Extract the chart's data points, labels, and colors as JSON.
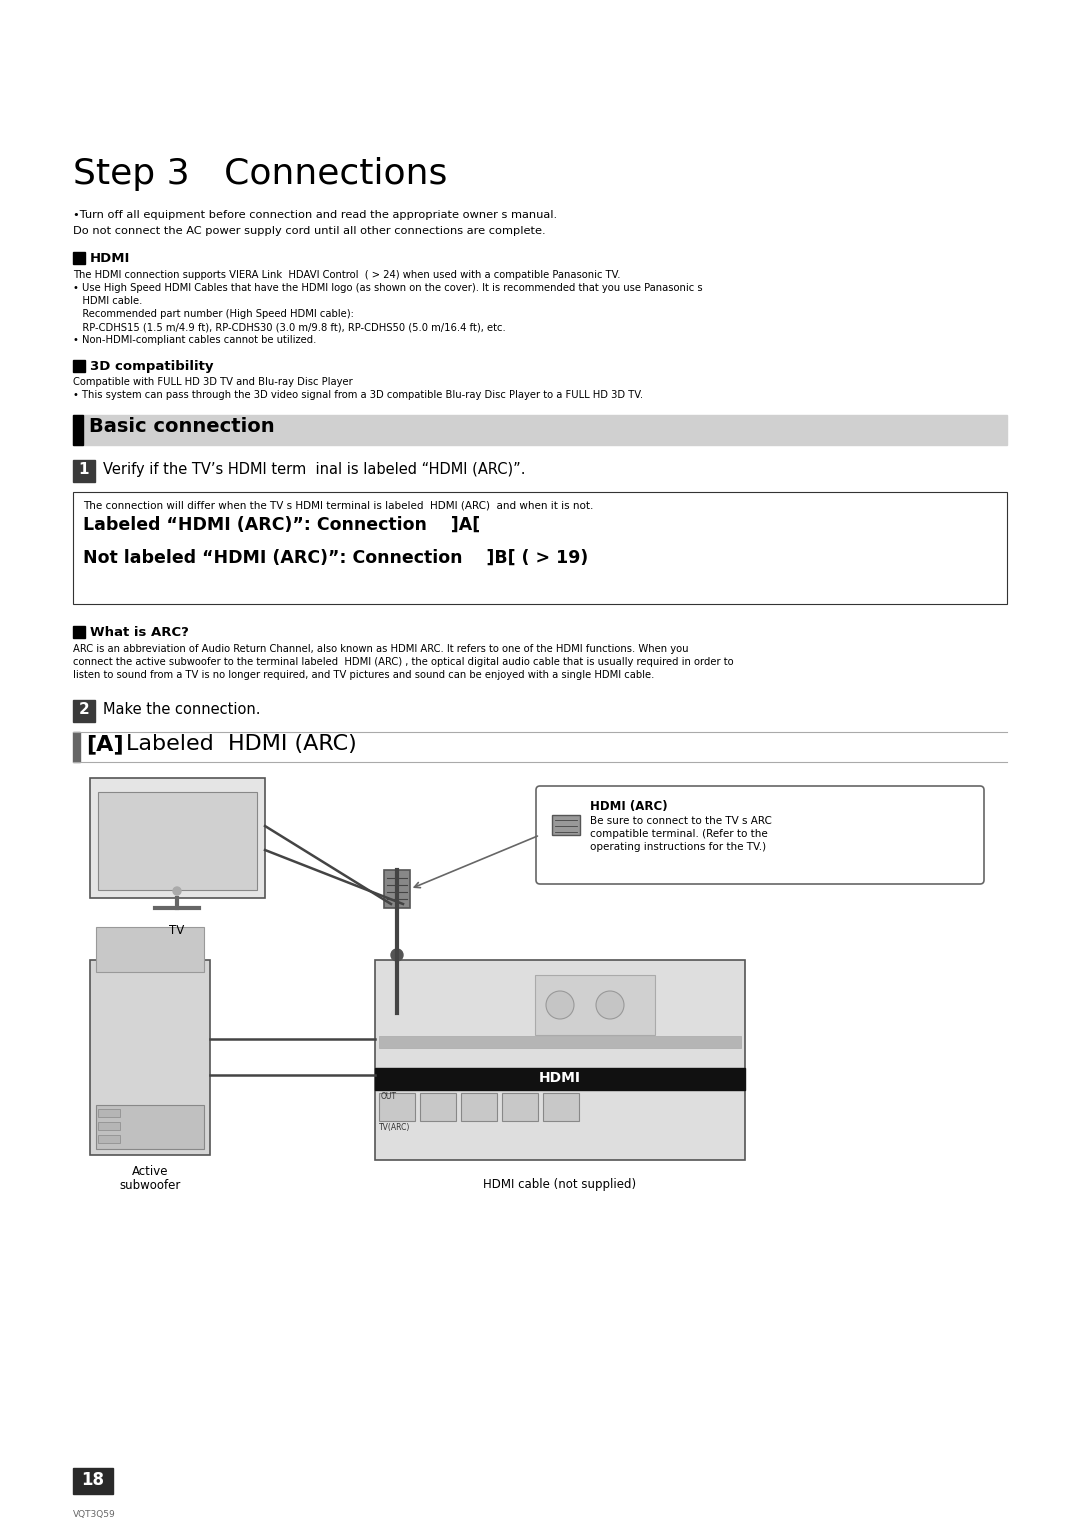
{
  "title": "Step 3   Connections",
  "page_bg": "#ffffff",
  "title_fontsize": 26,
  "bullet1a": "•Turn off all equipment before connection and read the appropriate owner s manual.",
  "bullet1b": "Do not connect the AC power supply cord until all other connections are complete.",
  "hdmi_header": "HDMI",
  "hdmi_text1": "The HDMI connection supports VIERA Link  HDAVI Control  ( > 24) when used with a compatible Panasonic TV.",
  "hdmi_text2a": "• Use High Speed HDMI Cables that have the HDMI logo (as shown on the cover). It is recommended that you use Panasonic s",
  "hdmi_text2b": "   HDMI cable.",
  "hdmi_text2c": "   Recommended part number (High Speed HDMI cable):",
  "hdmi_text2d": "   RP-CDHS15 (1.5 m/4.9 ft), RP-CDHS30 (3.0 m/9.8 ft), RP-CDHS50 (5.0 m/16.4 ft), etc.",
  "hdmi_text2e": "• Non-HDMI-compliant cables cannot be utilized.",
  "compat_header": "3D compatibility",
  "compat_text1": "Compatible with FULL HD 3D TV and Blu-ray Disc Player",
  "compat_text2": "• This system can pass through the 3D video signal from a 3D compatible Blu-ray Disc Player to a FULL HD 3D TV.",
  "basic_connection": "Basic connection",
  "step1_text": "Verify if the TV’s HDMI term  inal is labeled “HDMI (ARC)”.",
  "box_text_small": "The connection will differ when the TV s HDMI terminal is labeled  HDMI (ARC)  and when it is not.",
  "box_line1": "Labeled “HDMI (ARC)”: Connection    ]A[",
  "box_line2": "Not labeled “HDMI (ARC)”: Connection    ]B[ ( > 19)",
  "arc_header": "What is ARC?",
  "arc_text1": "ARC is an abbreviation of Audio Return Channel, also known as HDMI ARC. It refers to one of the HDMI functions. When you",
  "arc_text2": "connect the active subwoofer to the terminal labeled  HDMI (ARC) , the optical digital audio cable that is usually required in order to",
  "arc_text3": "listen to sound from a TV is no longer required, and TV pictures and sound can be enjoyed with a single HDMI cable.",
  "step2_text": "Make the connection.",
  "a_label_bracket": "[A]",
  "a_label_rest": "Labeled  HDMI (ARC)",
  "hdmi_arc_label": "HDMI (ARC)",
  "hdmi_arc_note1": "Be sure to connect to the TV s ARC",
  "hdmi_arc_note2": "compatible terminal. (Refer to the",
  "hdmi_arc_note3": "operating instructions for the TV.)",
  "tv_label": "TV",
  "active_label1": "Active",
  "active_label2": "subwoofer",
  "hdmi_cable_label": "HDMI cable (not supplied)",
  "page_num": "18",
  "page_code": "VQT3Q59",
  "out_label": "OUT",
  "tvarc_label": "TV(ARC)",
  "hdmi_bar_text": "HDMI"
}
